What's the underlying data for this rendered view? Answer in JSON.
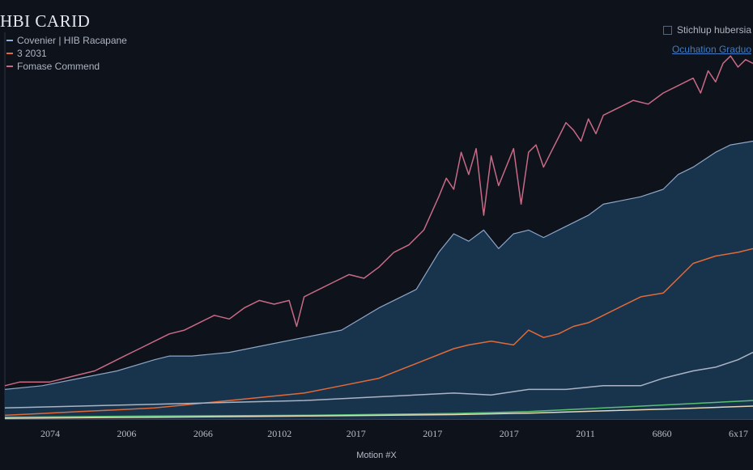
{
  "chart_data": {
    "type": "area",
    "title": "HBI CARID",
    "xlabel": "Motion #X",
    "ylabel": "",
    "x_tick_labels": [
      "2074",
      "2006",
      "2066",
      "20102",
      "2017",
      "2017",
      "2017",
      "2011",
      "6860",
      "6x17"
    ],
    "ylim": [
      0,
      100
    ],
    "grid": false,
    "legend_left": {
      "position": "top-left",
      "items": [
        {
          "label": "Covenier | HIB Racapane",
          "color": "#8fb0d8"
        },
        {
          "label": "3 2031",
          "color": "#e06a3a"
        },
        {
          "label": "Fomase Commend",
          "color": "#c86a86"
        }
      ]
    },
    "legend_right": {
      "position": "top-right",
      "items": [
        {
          "label": "Stichlup hubersia",
          "style": "checkbox"
        },
        {
          "label": "Ocuhation Graduo",
          "style": "link"
        }
      ]
    },
    "series": [
      {
        "name": "Fomase Commend",
        "type": "line",
        "color": "#c86a86",
        "x": [
          0,
          2,
          4,
          6,
          8,
          10,
          12,
          14,
          16,
          18,
          20,
          22,
          24,
          26,
          28,
          30,
          32,
          34,
          36,
          38,
          39,
          40,
          42,
          44,
          46,
          48,
          50,
          52,
          54,
          56,
          58,
          59,
          60,
          61,
          62,
          63,
          64,
          65,
          66,
          68,
          69,
          70,
          71,
          72,
          73,
          74,
          75,
          76,
          77,
          78,
          79,
          80,
          82,
          84,
          86,
          88,
          90,
          92,
          93,
          94,
          95,
          96,
          97,
          98,
          99,
          100
        ],
        "values": [
          9,
          10,
          10,
          10,
          11,
          12,
          13,
          15,
          17,
          19,
          21,
          23,
          24,
          26,
          28,
          27,
          30,
          32,
          31,
          32,
          25,
          33,
          35,
          37,
          39,
          38,
          41,
          45,
          47,
          51,
          60,
          65,
          62,
          72,
          66,
          73,
          55,
          71,
          63,
          73,
          58,
          72,
          74,
          68,
          72,
          76,
          80,
          78,
          75,
          81,
          77,
          82,
          84,
          86,
          85,
          88,
          90,
          92,
          88,
          94,
          91,
          96,
          98,
          95,
          97,
          96
        ]
      },
      {
        "name": "Covenier | HIB Racapane",
        "type": "area",
        "color": "#8fa6c8",
        "fill": "#1b3a55",
        "x": [
          0,
          5,
          10,
          15,
          20,
          22,
          25,
          30,
          35,
          40,
          45,
          50,
          55,
          58,
          60,
          62,
          64,
          66,
          68,
          70,
          72,
          75,
          78,
          80,
          85,
          88,
          90,
          92,
          95,
          97,
          100
        ],
        "values": [
          8,
          9,
          11,
          13,
          16,
          17,
          17,
          18,
          20,
          22,
          24,
          30,
          35,
          45,
          50,
          48,
          51,
          46,
          50,
          51,
          49,
          52,
          55,
          58,
          60,
          62,
          66,
          68,
          72,
          74,
          75
        ]
      },
      {
        "name": "3 2031",
        "type": "line",
        "color": "#e06a3a",
        "x": [
          0,
          5,
          10,
          15,
          20,
          25,
          30,
          35,
          40,
          45,
          50,
          55,
          60,
          62,
          65,
          68,
          70,
          72,
          74,
          76,
          78,
          80,
          82,
          85,
          88,
          90,
          92,
          95,
          98,
          100
        ],
        "values": [
          1,
          1.5,
          2,
          2.5,
          3,
          4,
          5,
          6,
          7,
          9,
          11,
          15,
          19,
          20,
          21,
          20,
          24,
          22,
          23,
          25,
          26,
          28,
          30,
          33,
          34,
          38,
          42,
          44,
          45,
          46
        ]
      },
      {
        "name": "",
        "type": "line",
        "color": "#aab4c4",
        "x": [
          0,
          10,
          20,
          30,
          40,
          50,
          60,
          65,
          70,
          75,
          80,
          85,
          88,
          90,
          92,
          95,
          98,
          100
        ],
        "values": [
          3,
          3.5,
          4,
          4.5,
          5,
          6,
          7,
          6.5,
          8,
          8,
          9,
          9,
          11,
          12,
          13,
          14,
          16,
          18
        ]
      },
      {
        "name": "",
        "type": "line",
        "color": "#58c070",
        "x": [
          0,
          20,
          40,
          60,
          70,
          80,
          90,
          100
        ],
        "values": [
          0.5,
          0.8,
          1,
          1.5,
          2,
          3,
          4,
          5
        ]
      },
      {
        "name": "",
        "type": "line",
        "color": "#e6d8b8",
        "x": [
          0,
          20,
          40,
          60,
          70,
          80,
          90,
          100
        ],
        "values": [
          0.2,
          0.5,
          0.8,
          1.2,
          1.6,
          2.2,
          2.8,
          3.5
        ]
      }
    ]
  }
}
